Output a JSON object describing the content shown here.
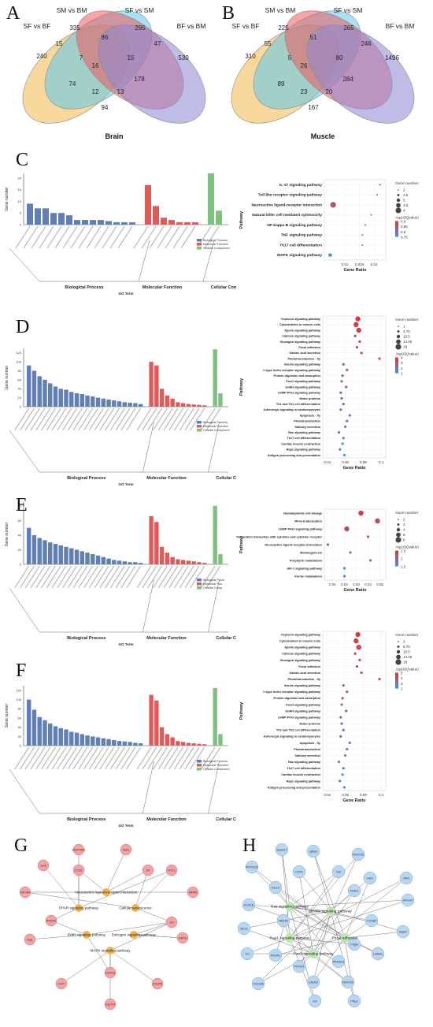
{
  "labels": {
    "A": "A",
    "B": "B",
    "C": "C",
    "D": "D",
    "E": "E",
    "F": "F",
    "G": "G",
    "H": "H"
  },
  "venn": [
    {
      "id": "brain",
      "sets": [
        "SF vs BF",
        "SM vs BM",
        "SF vs SM",
        "BF vs BM"
      ],
      "colors": [
        "#f2b84b",
        "#5cc8ef",
        "#ef5a5a",
        "#8b86d6"
      ],
      "values": {
        "a": "240",
        "b": "335",
        "c": "295",
        "d": "530",
        "ab": "15",
        "bc": "86",
        "cd": "47",
        "ac": "7",
        "bd": "15",
        "abc": "16",
        "ad": "74",
        "acd": "12",
        "abd": "13",
        "bcd": "178",
        "abcd": "94"
      },
      "caption": "Brain"
    },
    {
      "id": "muscle",
      "sets": [
        "SF vs BF",
        "SM vs BM",
        "SF vs SM",
        "BF vs BM"
      ],
      "colors": [
        "#f2b84b",
        "#5cc8ef",
        "#ef5a5a",
        "#8b86d6"
      ],
      "values": {
        "a": "310",
        "b": "225",
        "c": "265",
        "d": "1496",
        "ab": "55",
        "bc": "51",
        "cd": "246",
        "ac": "5",
        "bd": "80",
        "abc": "26",
        "ad": "89",
        "acd": "23",
        "abd": "20",
        "bcd": "284",
        "abcd": "167"
      },
      "caption": "Muscle"
    }
  ],
  "go_text": {
    "ylabel": "Gene number",
    "xlabel": "GO Term",
    "bp": "Biological Process",
    "mf": "Molecular Function",
    "cc": "Cellular Component",
    "legend": [
      "Biological Process",
      "Molecular Function",
      "Cellular Component"
    ],
    "legend_short": [
      "Biological Proce",
      "Molecular Fun",
      "Cellular Comp"
    ]
  },
  "kegg_text": {
    "ylabel": "Pathway",
    "xlabel": "Gene Ratio",
    "size_title": "Gene number",
    "color_title": "-log10(Qvalue)"
  },
  "chart_data": [
    {
      "type": "bar",
      "panel": "C",
      "ylim": [
        0,
        22
      ],
      "yticks": [
        "0",
        "5",
        "10",
        "15",
        "20"
      ],
      "series": [
        {
          "name": "Biological Process",
          "values": [
            9,
            7,
            7,
            5,
            5,
            4,
            2,
            2,
            2,
            2,
            1.5,
            1,
            1,
            1
          ]
        },
        {
          "name": "Molecular Function",
          "values": [
            17,
            8,
            3,
            2,
            1,
            1,
            1
          ]
        },
        {
          "name": "Cellular Component",
          "values": [
            22,
            6
          ]
        }
      ]
    },
    {
      "type": "scatter",
      "panel": "C-kegg",
      "pathways": [
        "IL-17 signaling pathway",
        "Toll-like receptor signaling pathway",
        "Neuroactive ligand-receptor interaction",
        "Natural killer cell mediated cytotoxicity",
        "NF-kappa B signaling pathway",
        "TNF signaling pathway",
        "Th17 cell differentiation",
        "MAPK signaling pathway"
      ],
      "x": [
        0.022,
        0.021,
        0.006,
        0.019,
        0.017,
        0.016,
        0.016,
        0.005
      ],
      "size": [
        2,
        2,
        4,
        2,
        2,
        2,
        2,
        3
      ],
      "xticks": [
        "0.01",
        "0.015",
        "0.02"
      ],
      "xlim": [
        0.003,
        0.024
      ],
      "size_legend": [
        "2",
        "2.5",
        "3",
        "3.5",
        "4"
      ],
      "color_legend": [
        "0.9",
        "0.85",
        "0.8",
        "0.75"
      ]
    },
    {
      "type": "bar",
      "panel": "D",
      "ylim": [
        0,
        130
      ],
      "yticks": [
        "0",
        "20",
        "40",
        "60",
        "80",
        "100",
        "120"
      ],
      "series": [
        {
          "name": "Biological Process",
          "values": [
            92,
            80,
            68,
            60,
            52,
            45,
            40,
            38,
            33,
            30,
            28,
            25,
            23,
            20,
            18,
            16,
            14,
            12,
            10,
            9,
            8,
            6
          ]
        },
        {
          "name": "Molecular Function",
          "values": [
            100,
            92,
            40,
            25,
            18,
            10,
            8,
            6,
            5,
            4,
            3
          ]
        },
        {
          "name": "Cellular Component",
          "values": [
            128,
            30
          ]
        }
      ]
    },
    {
      "type": "scatter",
      "panel": "D-kegg",
      "pathways": [
        "Oxytocin signaling pathway",
        "Cytoskeleton in muscle cells",
        "Apelin signaling pathway",
        "Calcium signaling pathway",
        "Glucagon signaling pathway",
        "Focal adhesion",
        "Gastric acid secretion",
        "Phototransduction - fly",
        "Insulin signaling pathway",
        "C-type lectin receptor signaling pathway",
        "Protein digestion and absorption",
        "FoxO signaling pathway",
        "GnRH signaling pathway",
        "cGMP-PKG signaling pathway",
        "Motor proteins",
        "Th1 and Th2 cell differentiation",
        "Adrenergic signaling in cardiomyocytes",
        "Apoptosis - fly",
        "Phototransduction",
        "Salivary secretion",
        "Ras signaling pathway",
        "Th17 cell differentiation",
        "Cardiac muscle contraction",
        "Rap1 signaling pathway",
        "Antigen processing and presentation"
      ],
      "x": [
        0.074,
        0.072,
        0.075,
        0.071,
        0.076,
        0.073,
        0.078,
        0.098,
        0.058,
        0.062,
        0.057,
        0.056,
        0.061,
        0.055,
        0.056,
        0.058,
        0.055,
        0.065,
        0.062,
        0.06,
        0.053,
        0.058,
        0.057,
        0.054,
        0.059
      ],
      "xticks": [
        "0.04",
        "0.06",
        "0.08",
        "0.1"
      ],
      "xlim": [
        0.035,
        0.105
      ],
      "size_legend": [
        "1",
        "4.75",
        "10.5",
        "14.25",
        "18"
      ],
      "color_legend": [
        "4",
        "3",
        "2",
        "1"
      ]
    },
    {
      "type": "bar",
      "panel": "E",
      "ylim": [
        0,
        82
      ],
      "yticks": [
        "0",
        "20",
        "40",
        "60",
        "80"
      ],
      "series": [
        {
          "name": "Biological Process",
          "values": [
            50,
            40,
            36,
            33,
            30,
            28,
            26,
            24,
            22,
            20,
            18,
            16,
            14,
            12,
            10,
            8,
            6,
            5,
            4,
            3,
            3,
            2
          ]
        },
        {
          "name": "Molecular Function",
          "values": [
            66,
            58,
            24,
            16,
            10,
            7,
            6,
            5,
            4,
            3,
            2
          ]
        },
        {
          "name": "Cellular Component",
          "values": [
            80,
            14
          ]
        }
      ]
    },
    {
      "type": "scatter",
      "panel": "E-kegg",
      "pathways": [
        "Hematopoietic cell lineage",
        "Mineral absorption",
        "cGMP-PKG signaling pathway",
        "Viral protein interaction with cytokine and cytokine receptor",
        "Neuroactive ligand-receptor interaction",
        "Melanogenesis",
        "Porphyrin metabolism",
        "HIF-1 signaling pathway",
        "Purine metabolism"
      ],
      "x": [
        0.034,
        0.048,
        0.022,
        0.04,
        0.006,
        0.025,
        0.042,
        0.02,
        0.02
      ],
      "xticks": [
        "0.01",
        "0.02",
        "0.03",
        "0.04",
        "0.05"
      ],
      "xlim": [
        0.003,
        0.055
      ],
      "size_legend": [
        "2",
        "3",
        "4",
        "6",
        "8"
      ],
      "color_legend": [
        "2.5",
        "2",
        "1.5"
      ]
    },
    {
      "type": "bar",
      "panel": "F",
      "ylim": [
        0,
        130
      ],
      "yticks": [
        "0",
        "20",
        "40",
        "60",
        "80",
        "100",
        "120"
      ],
      "series": [
        {
          "name": "Biological Process",
          "values": [
            100,
            78,
            62,
            55,
            48,
            42,
            38,
            35,
            30,
            28,
            25,
            22,
            20,
            18,
            16,
            14,
            12,
            10,
            9,
            8,
            6,
            5
          ]
        },
        {
          "name": "Molecular Function",
          "values": [
            110,
            98,
            40,
            25,
            18,
            10,
            8,
            6,
            5,
            4,
            3
          ]
        },
        {
          "name": "Cellular Component",
          "values": [
            125,
            25
          ]
        }
      ]
    },
    {
      "type": "scatter",
      "panel": "F-kegg",
      "pathways": [
        "Oxytocin signaling pathway",
        "Cytoskeleton in muscle cells",
        "Apelin signaling pathway",
        "Calcium signaling pathway",
        "Glucagon signaling pathway",
        "Focal adhesion",
        "Gastric acid secretion",
        "Phototransduction - fly",
        "Insulin signaling pathway",
        "C-type lectin receptor signaling pathway",
        "Protein digestion and absorption",
        "FoxO signaling pathway",
        "GnRH signaling pathway",
        "cGMP-PKG signaling pathway",
        "Motor proteins",
        "Th1 and Th2 cell differentiation",
        "Adrenergic signaling in cardiomyocytes",
        "Apoptosis - fly",
        "Phototransduction",
        "Salivary secretion",
        "Ras signaling pathway",
        "Th17 cell differentiation",
        "Cardiac muscle contraction",
        "Rap1 signaling pathway",
        "Antigen processing and presentation"
      ],
      "x": [
        0.074,
        0.072,
        0.075,
        0.071,
        0.076,
        0.073,
        0.078,
        0.098,
        0.058,
        0.062,
        0.057,
        0.056,
        0.061,
        0.055,
        0.056,
        0.058,
        0.055,
        0.065,
        0.062,
        0.06,
        0.053,
        0.058,
        0.057,
        0.054,
        0.059
      ],
      "xticks": [
        "0.04",
        "0.06",
        "0.08",
        "0.1"
      ],
      "xlim": [
        0.035,
        0.105
      ],
      "size_legend": [
        "3",
        "6.75",
        "10.5",
        "14.25",
        "18"
      ],
      "color_legend": [
        "5",
        "4",
        "3",
        "2"
      ]
    }
  ],
  "network_g": {
    "pathways": [
      "Neuroactive ligand-receptor interaction",
      "PPAR signaling pathway",
      "Cellular senescence",
      "ErbB signaling pathway",
      "Estrogen signaling pathway",
      "MAPK signaling pathway"
    ],
    "genes": [
      "SERPINE1",
      "Ishh1",
      "Junb",
      "CCN1",
      "Tet",
      "HYF3",
      "NPY4R",
      "MMP8",
      "PRKAR",
      "Jun",
      "Agt1",
      "NPR3",
      "CRKAG",
      "CHIT",
      "DUSP8",
      "Cyp7b1"
    ]
  },
  "network_h": {
    "pathways": [
      "Ras signaling pathway",
      "Insulin signaling pathway",
      "Rap1 signaling pathway",
      "Focal adhesion",
      "FoxO signaling pathway"
    ],
    "genes": [
      "Homer1",
      "Igfbp2",
      "FBXO25",
      "PPP1R3C",
      "CCN1",
      "Ndr",
      "HGF",
      "CAV2",
      "IGLL5",
      "PHKG",
      "MYLK4",
      "ACACB",
      "Mlkn5b",
      "CCNB2",
      "BCL6",
      "Pdgfa",
      "Hspb2",
      "Vcl",
      "PIK3R1",
      "PIK3C3",
      "PRKAG3",
      "CALM1",
      "FBXO32",
      "LAMA2",
      "COL6A6",
      "Jun",
      "Pfkp1"
    ]
  }
}
